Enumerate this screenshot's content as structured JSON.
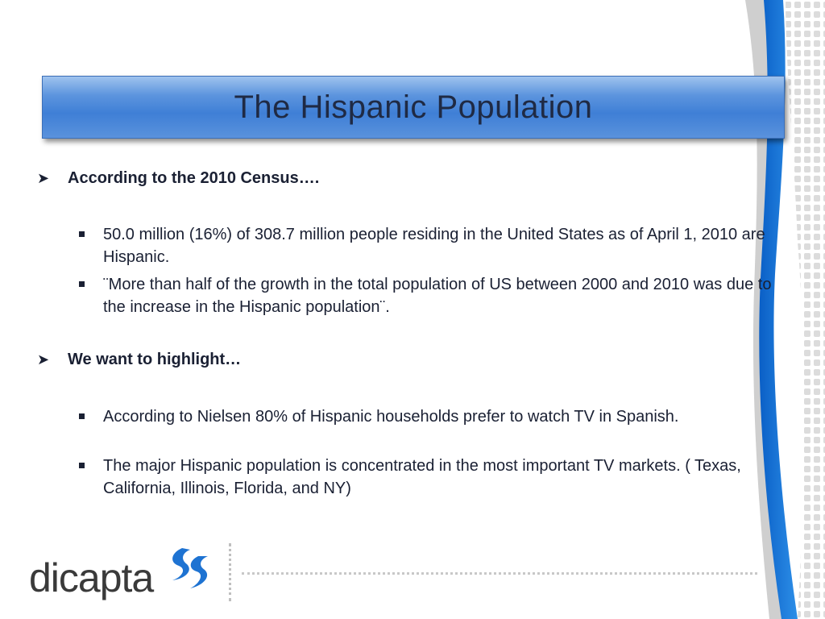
{
  "slide": {
    "title": "The Hispanic Population",
    "sections": [
      {
        "heading": "According to the 2010 Census….",
        "points": [
          "50.0 million (16%) of 308.7 million people residing in the United States as of  April 1, 2010 are Hispanic.",
          "¨More than half of the growth in the total population of US between 2000 and 2010 was due to the increase in the Hispanic population¨."
        ]
      },
      {
        "heading": "We want to highlight…",
        "points": [
          " According to Nielsen 80% of  Hispanic households prefer to watch TV in Spanish.",
          "The major  Hispanic population is concentrated in the most important TV markets. ( Texas, California, Illinois, Florida, and NY)"
        ]
      }
    ]
  },
  "logo": {
    "text": "dicapta",
    "icon": "dicapta-swoosh-logo-icon"
  },
  "colors": {
    "title_bar": "#3f7fd6",
    "accent_blue": "#1e73d2",
    "text": "#1a2033",
    "logo_gray": "#3a3a3a"
  }
}
